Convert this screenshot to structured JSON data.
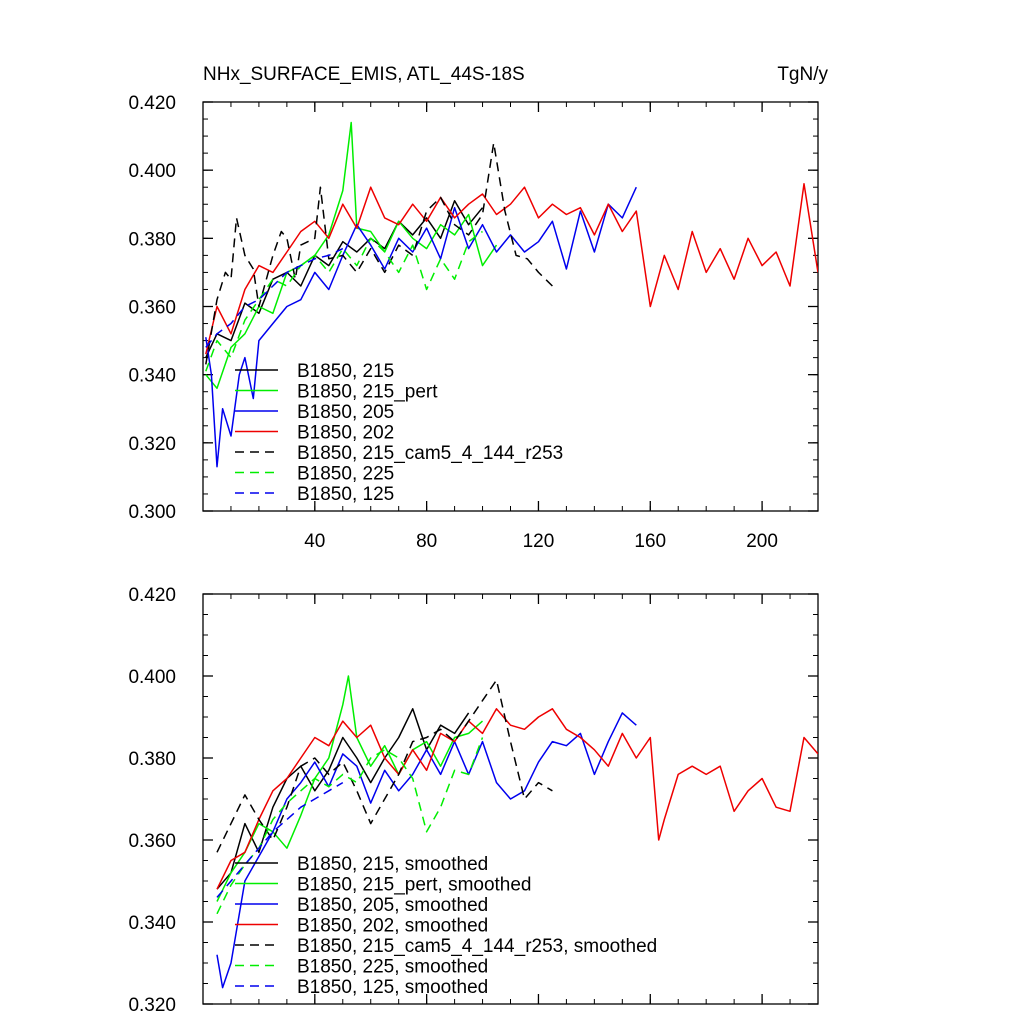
{
  "chart_data": [
    {
      "type": "line",
      "title": "NHx_SURFACE_EMIS, ATL_44S-18S",
      "units": "TgN/y",
      "xlim": [
        0,
        220
      ],
      "ylim": [
        0.3,
        0.42
      ],
      "x_ticks": [
        40,
        80,
        120,
        160,
        200
      ],
      "y_ticks": [
        0.3,
        0.32,
        0.34,
        0.36,
        0.38,
        0.4,
        0.42
      ],
      "y_tick_labels": [
        "0.300",
        "0.320",
        "0.340",
        "0.360",
        "0.380",
        "0.400",
        "0.420"
      ],
      "legend_position": "lower-left",
      "series": [
        {
          "name": "B1850, 215",
          "color": "#000000",
          "dash": "solid",
          "x": [
            1,
            5,
            10,
            15,
            20,
            25,
            30,
            35,
            40,
            45,
            50,
            55,
            60,
            65,
            70,
            75,
            80,
            85,
            90,
            95,
            100
          ],
          "y": [
            0.345,
            0.352,
            0.35,
            0.361,
            0.358,
            0.368,
            0.37,
            0.366,
            0.375,
            0.372,
            0.379,
            0.376,
            0.38,
            0.377,
            0.385,
            0.381,
            0.386,
            0.38,
            0.391,
            0.384,
            0.389
          ]
        },
        {
          "name": "B1850, 215_pert",
          "color": "#00ee00",
          "dash": "solid",
          "x": [
            1,
            5,
            10,
            15,
            20,
            25,
            30,
            35,
            40,
            45,
            50,
            53,
            55,
            60,
            65,
            70,
            75,
            80,
            85,
            90,
            95,
            100,
            105
          ],
          "y": [
            0.34,
            0.336,
            0.348,
            0.352,
            0.36,
            0.358,
            0.37,
            0.372,
            0.375,
            0.381,
            0.394,
            0.414,
            0.383,
            0.382,
            0.376,
            0.385,
            0.38,
            0.377,
            0.384,
            0.381,
            0.387,
            0.372,
            0.378
          ]
        },
        {
          "name": "B1850, 205",
          "color": "#0000ee",
          "dash": "solid",
          "x": [
            1,
            3,
            5,
            7,
            10,
            13,
            15,
            18,
            20,
            25,
            30,
            35,
            40,
            45,
            50,
            55,
            60,
            65,
            70,
            75,
            80,
            85,
            90,
            95,
            100,
            105,
            110,
            115,
            120,
            125,
            130,
            135,
            140,
            145,
            150,
            155
          ],
          "y": [
            0.351,
            0.34,
            0.313,
            0.33,
            0.322,
            0.34,
            0.345,
            0.333,
            0.35,
            0.355,
            0.36,
            0.362,
            0.37,
            0.365,
            0.375,
            0.384,
            0.378,
            0.371,
            0.38,
            0.376,
            0.383,
            0.374,
            0.389,
            0.377,
            0.384,
            0.376,
            0.381,
            0.376,
            0.379,
            0.385,
            0.371,
            0.388,
            0.376,
            0.39,
            0.386,
            0.395
          ]
        },
        {
          "name": "B1850, 202",
          "color": "#ee0000",
          "dash": "solid",
          "x": [
            1,
            5,
            10,
            15,
            20,
            25,
            30,
            35,
            40,
            45,
            50,
            55,
            60,
            65,
            70,
            75,
            80,
            85,
            90,
            95,
            100,
            105,
            110,
            115,
            120,
            125,
            130,
            135,
            140,
            145,
            150,
            155,
            160,
            165,
            170,
            175,
            180,
            185,
            190,
            195,
            200,
            205,
            210,
            215,
            220
          ],
          "y": [
            0.346,
            0.36,
            0.352,
            0.365,
            0.372,
            0.37,
            0.376,
            0.382,
            0.385,
            0.38,
            0.39,
            0.383,
            0.395,
            0.386,
            0.384,
            0.39,
            0.385,
            0.392,
            0.386,
            0.39,
            0.393,
            0.387,
            0.39,
            0.395,
            0.386,
            0.39,
            0.387,
            0.389,
            0.381,
            0.39,
            0.382,
            0.388,
            0.36,
            0.375,
            0.365,
            0.382,
            0.37,
            0.377,
            0.368,
            0.38,
            0.372,
            0.376,
            0.366,
            0.396,
            0.37
          ]
        },
        {
          "name": "B1850, 215_cam5_4_144_r253",
          "color": "#000000",
          "dash": "dashed",
          "x": [
            1,
            5,
            8,
            10,
            12,
            15,
            18,
            20,
            25,
            28,
            30,
            33,
            35,
            40,
            42,
            45,
            50,
            55,
            60,
            65,
            70,
            75,
            80,
            85,
            90,
            95,
            100,
            104,
            108,
            112,
            116,
            120,
            125
          ],
          "y": [
            0.343,
            0.362,
            0.37,
            0.368,
            0.386,
            0.375,
            0.371,
            0.36,
            0.375,
            0.382,
            0.38,
            0.368,
            0.378,
            0.38,
            0.395,
            0.374,
            0.375,
            0.37,
            0.377,
            0.37,
            0.378,
            0.375,
            0.388,
            0.392,
            0.384,
            0.381,
            0.387,
            0.408,
            0.388,
            0.375,
            0.374,
            0.37,
            0.366
          ]
        },
        {
          "name": "B1850, 225",
          "color": "#00ee00",
          "dash": "dashed",
          "x": [
            1,
            5,
            10,
            15,
            20,
            25,
            30,
            35,
            40,
            45,
            50,
            55,
            60,
            65,
            70,
            75,
            80,
            85,
            90,
            95,
            100
          ],
          "y": [
            0.341,
            0.35,
            0.345,
            0.356,
            0.362,
            0.368,
            0.366,
            0.372,
            0.375,
            0.37,
            0.377,
            0.372,
            0.38,
            0.376,
            0.37,
            0.378,
            0.365,
            0.374,
            0.368,
            0.379,
            0.382
          ]
        },
        {
          "name": "B1850, 125",
          "color": "#0000ee",
          "dash": "dashed",
          "x": [
            1,
            5,
            10,
            15,
            20,
            25,
            30,
            35,
            40,
            45,
            50
          ],
          "y": [
            0.348,
            0.352,
            0.355,
            0.36,
            0.362,
            0.366,
            0.37,
            0.372,
            0.374,
            0.375,
            0.377
          ]
        }
      ]
    },
    {
      "type": "line",
      "title": "",
      "units": "",
      "xlim": [
        0,
        220
      ],
      "ylim": [
        0.32,
        0.42
      ],
      "x_ticks": [
        40,
        80,
        120,
        160,
        200
      ],
      "y_ticks": [
        0.32,
        0.34,
        0.36,
        0.38,
        0.4,
        0.42
      ],
      "y_tick_labels": [
        "0.320",
        "0.340",
        "0.360",
        "0.380",
        "0.400",
        "0.420"
      ],
      "legend_position": "lower-left",
      "series": [
        {
          "name": "B1850, 215, smoothed",
          "color": "#000000",
          "dash": "solid",
          "x": [
            5,
            10,
            15,
            20,
            25,
            30,
            35,
            40,
            45,
            50,
            55,
            60,
            65,
            70,
            75,
            80,
            85,
            90,
            95
          ],
          "y": [
            0.348,
            0.352,
            0.364,
            0.357,
            0.368,
            0.375,
            0.378,
            0.372,
            0.377,
            0.385,
            0.38,
            0.374,
            0.38,
            0.385,
            0.392,
            0.382,
            0.388,
            0.386,
            0.391
          ]
        },
        {
          "name": "B1850, 215_pert, smoothed",
          "color": "#00ee00",
          "dash": "solid",
          "x": [
            5,
            10,
            15,
            20,
            25,
            30,
            35,
            40,
            45,
            50,
            52,
            55,
            60,
            65,
            70,
            75,
            80,
            85,
            90,
            95,
            100
          ],
          "y": [
            0.345,
            0.352,
            0.357,
            0.364,
            0.362,
            0.358,
            0.366,
            0.375,
            0.38,
            0.393,
            0.4,
            0.385,
            0.378,
            0.383,
            0.376,
            0.382,
            0.384,
            0.378,
            0.385,
            0.386,
            0.389
          ]
        },
        {
          "name": "B1850, 205, smoothed",
          "color": "#0000ee",
          "dash": "solid",
          "x": [
            5,
            7,
            10,
            15,
            20,
            25,
            30,
            35,
            40,
            45,
            50,
            55,
            60,
            65,
            70,
            75,
            80,
            85,
            90,
            95,
            100,
            105,
            110,
            115,
            120,
            125,
            130,
            135,
            140,
            145,
            150,
            155
          ],
          "y": [
            0.332,
            0.324,
            0.33,
            0.35,
            0.356,
            0.362,
            0.37,
            0.374,
            0.379,
            0.373,
            0.381,
            0.378,
            0.369,
            0.377,
            0.372,
            0.376,
            0.382,
            0.376,
            0.384,
            0.376,
            0.384,
            0.374,
            0.37,
            0.372,
            0.379,
            0.384,
            0.383,
            0.386,
            0.376,
            0.384,
            0.391,
            0.388
          ]
        },
        {
          "name": "B1850, 202, smoothed",
          "color": "#ee0000",
          "dash": "solid",
          "x": [
            5,
            10,
            15,
            20,
            25,
            30,
            35,
            40,
            45,
            50,
            55,
            60,
            65,
            70,
            75,
            80,
            85,
            90,
            95,
            100,
            105,
            110,
            115,
            120,
            125,
            130,
            135,
            140,
            145,
            150,
            155,
            160,
            163,
            165,
            170,
            175,
            180,
            185,
            190,
            195,
            200,
            205,
            210,
            215,
            220
          ],
          "y": [
            0.348,
            0.355,
            0.357,
            0.365,
            0.372,
            0.375,
            0.38,
            0.385,
            0.383,
            0.389,
            0.385,
            0.388,
            0.38,
            0.376,
            0.382,
            0.377,
            0.386,
            0.384,
            0.389,
            0.386,
            0.392,
            0.388,
            0.387,
            0.39,
            0.392,
            0.387,
            0.385,
            0.382,
            0.378,
            0.386,
            0.38,
            0.385,
            0.36,
            0.365,
            0.376,
            0.378,
            0.376,
            0.378,
            0.367,
            0.372,
            0.375,
            0.368,
            0.367,
            0.385,
            0.381
          ]
        },
        {
          "name": "B1850, 215_cam5_4_144_r253, smoothed",
          "color": "#000000",
          "dash": "dashed",
          "x": [
            5,
            10,
            15,
            20,
            25,
            30,
            35,
            40,
            45,
            50,
            55,
            60,
            65,
            70,
            75,
            80,
            85,
            90,
            95,
            100,
            105,
            110,
            115,
            120,
            125
          ],
          "y": [
            0.357,
            0.364,
            0.371,
            0.365,
            0.36,
            0.368,
            0.378,
            0.38,
            0.376,
            0.379,
            0.372,
            0.364,
            0.37,
            0.376,
            0.384,
            0.385,
            0.387,
            0.384,
            0.389,
            0.394,
            0.399,
            0.384,
            0.37,
            0.374,
            0.372
          ]
        },
        {
          "name": "B1850, 225, smoothed",
          "color": "#00ee00",
          "dash": "dashed",
          "x": [
            5,
            10,
            15,
            20,
            25,
            30,
            35,
            40,
            45,
            50,
            55,
            60,
            65,
            70,
            75,
            80,
            85,
            90,
            95,
            100
          ],
          "y": [
            0.342,
            0.349,
            0.354,
            0.358,
            0.365,
            0.369,
            0.372,
            0.375,
            0.373,
            0.376,
            0.374,
            0.38,
            0.382,
            0.38,
            0.375,
            0.362,
            0.368,
            0.377,
            0.376,
            0.385
          ]
        },
        {
          "name": "B1850, 125, smoothed",
          "color": "#0000ee",
          "dash": "dashed",
          "x": [
            5,
            10,
            15,
            20,
            25,
            30,
            35,
            40,
            45,
            50
          ],
          "y": [
            0.346,
            0.35,
            0.354,
            0.358,
            0.362,
            0.365,
            0.368,
            0.37,
            0.372,
            0.374
          ]
        }
      ]
    }
  ]
}
